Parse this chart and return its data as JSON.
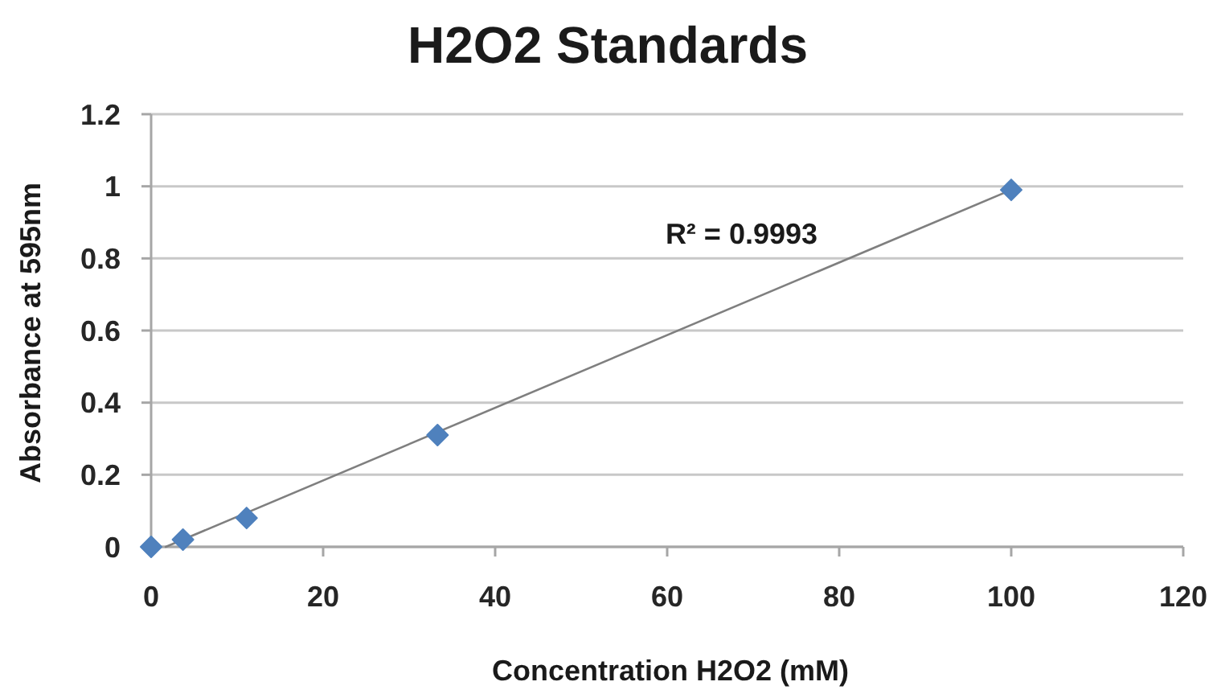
{
  "chart_data": {
    "type": "scatter",
    "title": "H2O2 Standards",
    "xlabel": "Concentration H2O2 (mM)",
    "ylabel": "Absorbance at 595nm",
    "x": [
      0,
      3.7,
      11.1,
      33.3,
      100
    ],
    "series": [
      {
        "color": "#4f81bd",
        "marker": "diamond",
        "values": [
          0,
          0.02,
          0.08,
          0.31,
          0.99
        ]
      },
      {
        "type": "line",
        "color": "#7f7f7f",
        "marker": "none",
        "x": [
          1.7,
          100
        ],
        "values": [
          0,
          0.99
        ]
      }
    ],
    "xlim": [
      0,
      120
    ],
    "xticks": [
      0,
      20,
      40,
      60,
      80,
      100,
      120
    ],
    "ylim": [
      0,
      1.2
    ],
    "yticks": [
      0,
      0.2,
      0.4,
      0.6,
      0.8,
      1,
      1.2
    ],
    "grid": "y",
    "annotations": [
      "R² = 0.9993"
    ]
  }
}
